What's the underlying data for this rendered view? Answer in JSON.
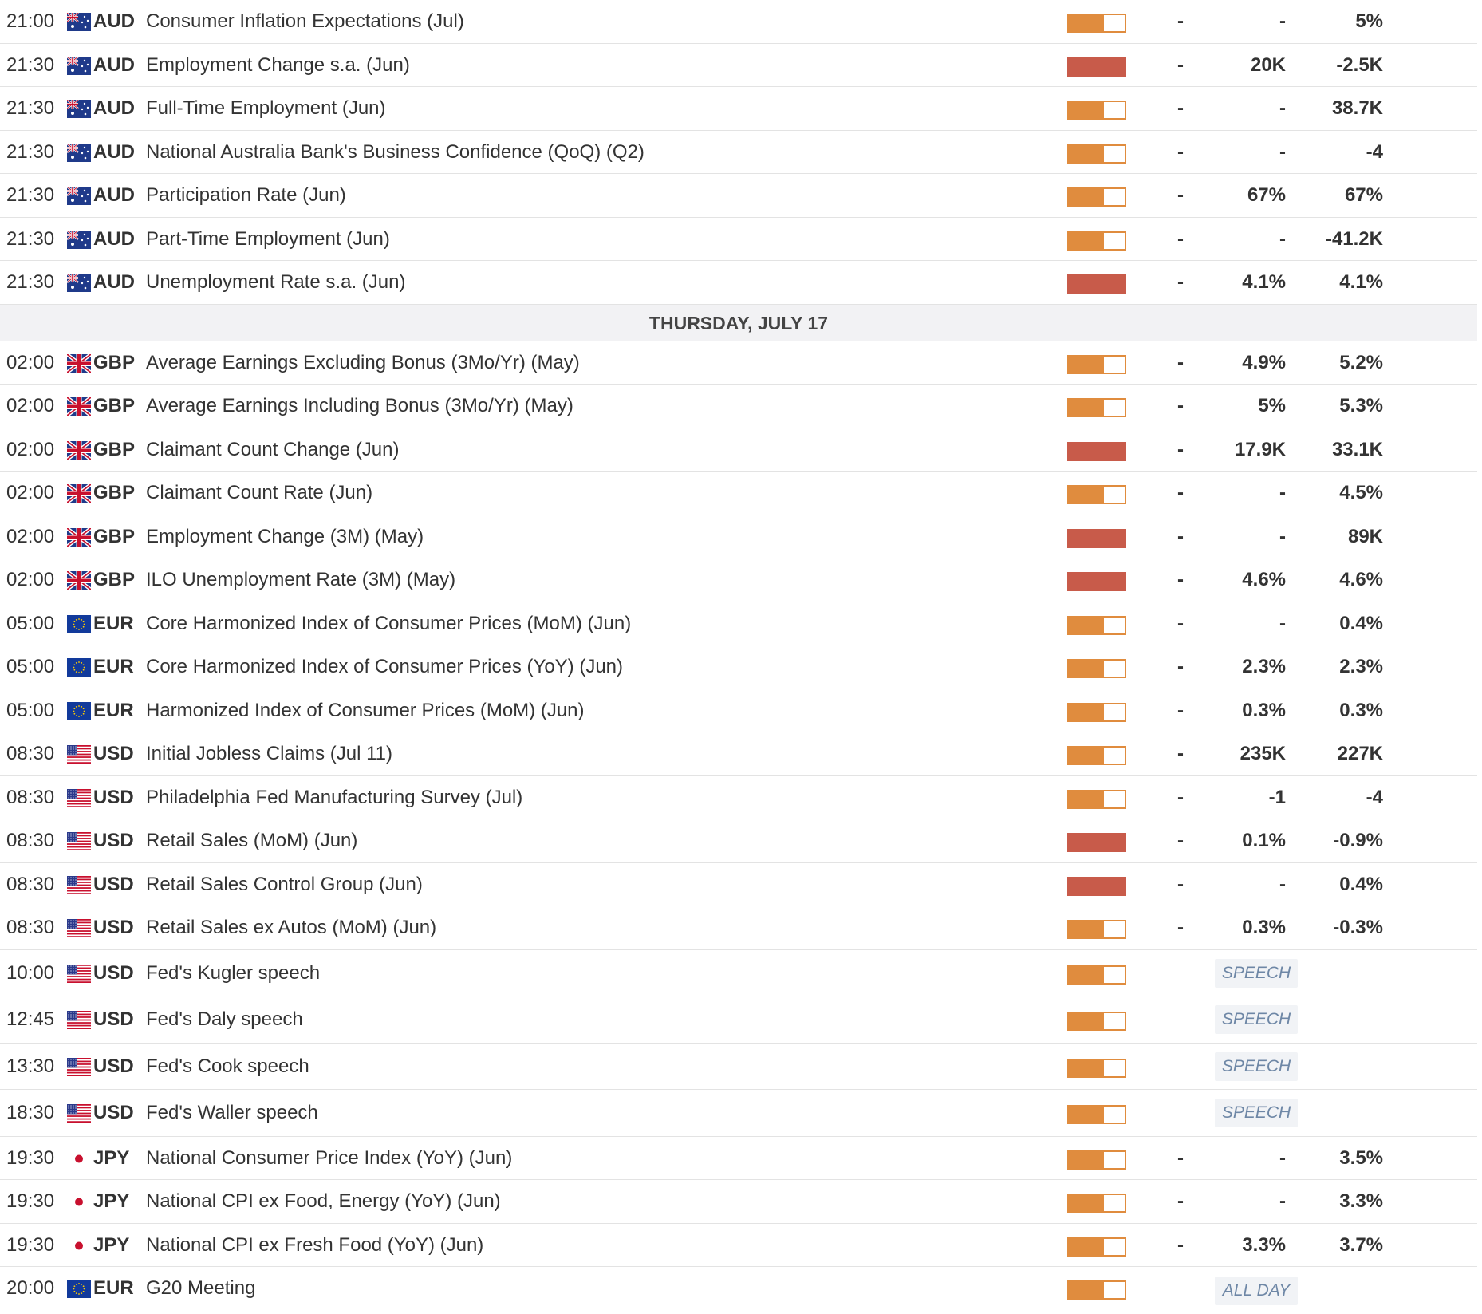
{
  "day_header": "THURSDAY, JULY 17",
  "rows_top": [
    {
      "time": "21:00",
      "flag": "au",
      "currency": "AUD",
      "event": "Consumer Inflation Expectations (Jul)",
      "impact": "medium",
      "actual": "-",
      "forecast": "-",
      "previous": "5%"
    },
    {
      "time": "21:30",
      "flag": "au",
      "currency": "AUD",
      "event": "Employment Change s.a. (Jun)",
      "impact": "high",
      "actual": "-",
      "forecast": "20K",
      "previous": "-2.5K"
    },
    {
      "time": "21:30",
      "flag": "au",
      "currency": "AUD",
      "event": "Full-Time Employment (Jun)",
      "impact": "medium",
      "actual": "-",
      "forecast": "-",
      "previous": "38.7K"
    },
    {
      "time": "21:30",
      "flag": "au",
      "currency": "AUD",
      "event": "National Australia Bank's Business Confidence (QoQ) (Q2)",
      "impact": "medium",
      "actual": "-",
      "forecast": "-",
      "previous": "-4"
    },
    {
      "time": "21:30",
      "flag": "au",
      "currency": "AUD",
      "event": "Participation Rate (Jun)",
      "impact": "medium",
      "actual": "-",
      "forecast": "67%",
      "previous": "67%"
    },
    {
      "time": "21:30",
      "flag": "au",
      "currency": "AUD",
      "event": "Part-Time Employment (Jun)",
      "impact": "medium",
      "actual": "-",
      "forecast": "-",
      "previous": "-41.2K"
    },
    {
      "time": "21:30",
      "flag": "au",
      "currency": "AUD",
      "event": "Unemployment Rate s.a. (Jun)",
      "impact": "high",
      "actual": "-",
      "forecast": "4.1%",
      "previous": "4.1%"
    }
  ],
  "rows_mid": [
    {
      "time": "02:00",
      "flag": "gb",
      "currency": "GBP",
      "event": "Average Earnings Excluding Bonus (3Mo/Yr) (May)",
      "impact": "medium",
      "actual": "-",
      "forecast": "4.9%",
      "previous": "5.2%"
    },
    {
      "time": "02:00",
      "flag": "gb",
      "currency": "GBP",
      "event": "Average Earnings Including Bonus (3Mo/Yr) (May)",
      "impact": "medium",
      "actual": "-",
      "forecast": "5%",
      "previous": "5.3%"
    },
    {
      "time": "02:00",
      "flag": "gb",
      "currency": "GBP",
      "event": "Claimant Count Change (Jun)",
      "impact": "high",
      "actual": "-",
      "forecast": "17.9K",
      "previous": "33.1K"
    },
    {
      "time": "02:00",
      "flag": "gb",
      "currency": "GBP",
      "event": "Claimant Count Rate (Jun)",
      "impact": "medium",
      "actual": "-",
      "forecast": "-",
      "previous": "4.5%"
    },
    {
      "time": "02:00",
      "flag": "gb",
      "currency": "GBP",
      "event": "Employment Change (3M) (May)",
      "impact": "high",
      "actual": "-",
      "forecast": "-",
      "previous": "89K"
    },
    {
      "time": "02:00",
      "flag": "gb",
      "currency": "GBP",
      "event": "ILO Unemployment Rate (3M) (May)",
      "impact": "high",
      "actual": "-",
      "forecast": "4.6%",
      "previous": "4.6%"
    },
    {
      "time": "05:00",
      "flag": "eu",
      "currency": "EUR",
      "event": "Core Harmonized Index of Consumer Prices (MoM) (Jun)",
      "impact": "medium",
      "actual": "-",
      "forecast": "-",
      "previous": "0.4%"
    },
    {
      "time": "05:00",
      "flag": "eu",
      "currency": "EUR",
      "event": "Core Harmonized Index of Consumer Prices (YoY) (Jun)",
      "impact": "medium",
      "actual": "-",
      "forecast": "2.3%",
      "previous": "2.3%"
    },
    {
      "time": "05:00",
      "flag": "eu",
      "currency": "EUR",
      "event": "Harmonized Index of Consumer Prices (MoM) (Jun)",
      "impact": "medium",
      "actual": "-",
      "forecast": "0.3%",
      "previous": "0.3%"
    },
    {
      "time": "08:30",
      "flag": "us",
      "currency": "USD",
      "event": "Initial Jobless Claims (Jul 11)",
      "impact": "medium",
      "actual": "-",
      "forecast": "235K",
      "previous": "227K"
    },
    {
      "time": "08:30",
      "flag": "us",
      "currency": "USD",
      "event": "Philadelphia Fed Manufacturing Survey (Jul)",
      "impact": "medium",
      "actual": "-",
      "forecast": "-1",
      "previous": "-4"
    },
    {
      "time": "08:30",
      "flag": "us",
      "currency": "USD",
      "event": "Retail Sales (MoM) (Jun)",
      "impact": "high",
      "actual": "-",
      "forecast": "0.1%",
      "previous": "-0.9%"
    },
    {
      "time": "08:30",
      "flag": "us",
      "currency": "USD",
      "event": "Retail Sales Control Group (Jun)",
      "impact": "high",
      "actual": "-",
      "forecast": "-",
      "previous": "0.4%"
    },
    {
      "time": "08:30",
      "flag": "us",
      "currency": "USD",
      "event": "Retail Sales ex Autos (MoM) (Jun)",
      "impact": "medium",
      "actual": "-",
      "forecast": "0.3%",
      "previous": "-0.3%"
    }
  ],
  "rows_speech": [
    {
      "time": "10:00",
      "flag": "us",
      "currency": "USD",
      "event": "Fed's Kugler speech",
      "impact": "medium",
      "tag": "SPEECH"
    },
    {
      "time": "12:45",
      "flag": "us",
      "currency": "USD",
      "event": "Fed's Daly speech",
      "impact": "medium",
      "tag": "SPEECH"
    },
    {
      "time": "13:30",
      "flag": "us",
      "currency": "USD",
      "event": "Fed's Cook speech",
      "impact": "medium",
      "tag": "SPEECH"
    },
    {
      "time": "18:30",
      "flag": "us",
      "currency": "USD",
      "event": "Fed's Waller speech",
      "impact": "medium",
      "tag": "SPEECH"
    }
  ],
  "rows_bottom": [
    {
      "time": "19:30",
      "flag": "jp",
      "currency": "JPY",
      "event": "National Consumer Price Index (YoY) (Jun)",
      "impact": "medium",
      "actual": "-",
      "forecast": "-",
      "previous": "3.5%"
    },
    {
      "time": "19:30",
      "flag": "jp",
      "currency": "JPY",
      "event": "National CPI ex Food, Energy (YoY) (Jun)",
      "impact": "medium",
      "actual": "-",
      "forecast": "-",
      "previous": "3.3%"
    },
    {
      "time": "19:30",
      "flag": "jp",
      "currency": "JPY",
      "event": "National CPI ex Fresh Food (YoY) (Jun)",
      "impact": "medium",
      "actual": "-",
      "forecast": "3.3%",
      "previous": "3.7%"
    },
    {
      "time": "20:00",
      "flag": "eu",
      "currency": "EUR",
      "event": "G20 Meeting",
      "impact": "medium",
      "tag": "ALL DAY"
    }
  ],
  "colors": {
    "impact_high": "#c85b4a",
    "impact_medium": "#e08c3e",
    "tag_text": "#6e87a6",
    "header_bg": "#f2f2f4"
  }
}
